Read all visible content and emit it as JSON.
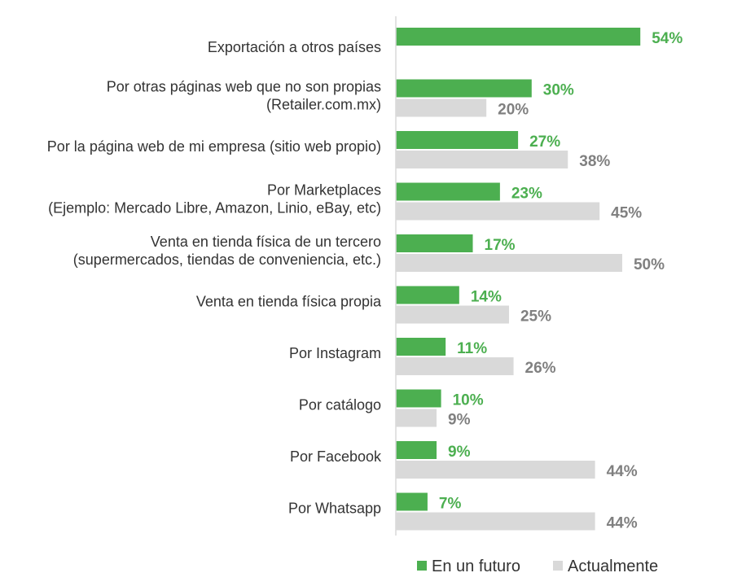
{
  "chart_data": {
    "type": "bar",
    "orientation": "horizontal",
    "categories": [
      [
        "Exportación a otros países"
      ],
      [
        "Por otras páginas web que no son propias",
        "(Retailer.com.mx)"
      ],
      [
        "Por la página web de mi empresa (sitio web propio)"
      ],
      [
        "Por Marketplaces",
        "(Ejemplo: Mercado Libre, Amazon, Linio, eBay, etc)"
      ],
      [
        "Venta en tienda física de un tercero",
        "(supermercados, tiendas de conveniencia, etc.)"
      ],
      [
        "Venta en tienda física propia"
      ],
      [
        "Por Instagram"
      ],
      [
        "Por catálogo"
      ],
      [
        "Por Facebook"
      ],
      [
        "Por Whatsapp"
      ]
    ],
    "series": [
      {
        "name": "En un futuro",
        "color": "#4caf50",
        "values": [
          54,
          30,
          27,
          23,
          17,
          14,
          11,
          10,
          9,
          7
        ],
        "labels": [
          "54%",
          "30%",
          "27%",
          "23%",
          "17%",
          "14%",
          "11%",
          "10%",
          "9%",
          "7%"
        ]
      },
      {
        "name": "Actualmente",
        "color": "#d9d9d9",
        "label_color": "#808080",
        "values": [
          null,
          20,
          38,
          45,
          50,
          25,
          26,
          9,
          44,
          44
        ],
        "labels": [
          "",
          "20%",
          "38%",
          "45%",
          "50%",
          "25%",
          "26%",
          "9%",
          "44%",
          "44%"
        ]
      }
    ],
    "xlim": [
      0,
      59
    ],
    "grid": false,
    "legend_position": "bottom-right"
  }
}
